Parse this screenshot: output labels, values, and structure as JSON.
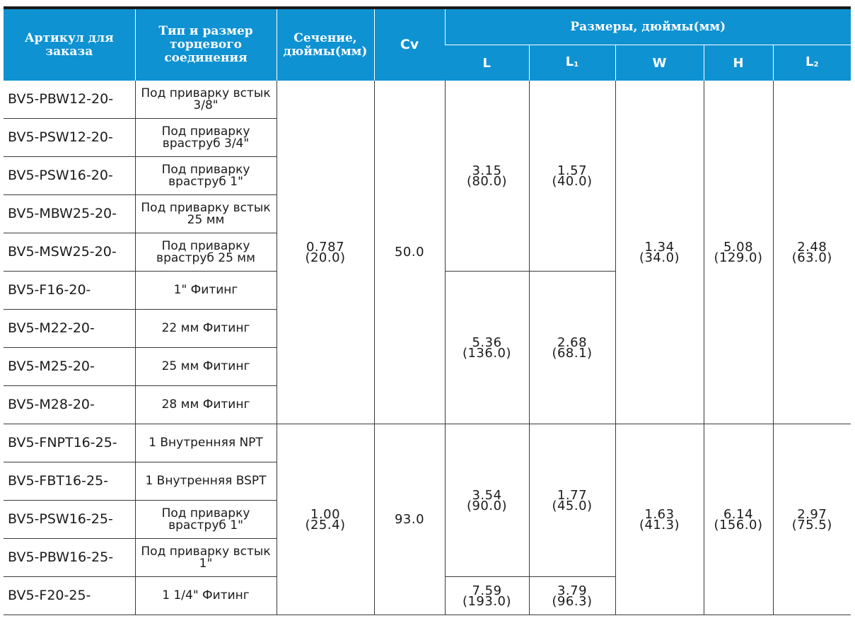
{
  "header": {
    "article": "Артикул для заказа",
    "end_type": "Тип и размер торцевого соединения",
    "section": "Сечение, дюймы(мм)",
    "cv": "Cv",
    "dimensions": "Размеры, дюймы(мм)",
    "dim_cols": {
      "L": "L",
      "L1_base": "L",
      "L1_sub": "1",
      "W": "W",
      "H": "H",
      "L2_base": "L",
      "L2_sub": "2"
    }
  },
  "rows": [
    {
      "article": "BV5-PBW12-20-",
      "type": "Под приварку встык 3/8\""
    },
    {
      "article": "BV5-PSW12-20-",
      "type": "Под приварку враструб 3/4\""
    },
    {
      "article": "BV5-PSW16-20-",
      "type": "Под приварку враструб 1\""
    },
    {
      "article": "BV5-MBW25-20-",
      "type": "Под приварку встык 25 мм"
    },
    {
      "article": "BV5-MSW25-20-",
      "type": "Под приварку враструб 25 мм"
    },
    {
      "article": "BV5-F16-20-",
      "type": "1\" Фитинг"
    },
    {
      "article": "BV5-M22-20-",
      "type": "22 мм Фитинг"
    },
    {
      "article": "BV5-M25-20-",
      "type": "25 мм Фитинг"
    },
    {
      "article": "BV5-M28-20-",
      "type": "28 мм Фитинг"
    },
    {
      "article": "BV5-FNPT16-25-",
      "type": "1 Внутренняя NPT"
    },
    {
      "article": "BV5-FBT16-25-",
      "type": "1 Внутренняя BSPT"
    },
    {
      "article": "BV5-PSW16-25-",
      "type": "Под приварку враструб 1\""
    },
    {
      "article": "BV5-PBW16-25-",
      "type": "Под приварку встык 1\""
    },
    {
      "article": "BV5-F20-25-",
      "type": "1 1/4\"  Фитинг"
    }
  ],
  "group1": {
    "section_in": "0.787",
    "section_mm": "(20.0)",
    "cv": "50.0",
    "L_a_in": "3.15",
    "L_a_mm": "(80.0)",
    "L1_a_in": "1.57",
    "L1_a_mm": "(40.0)",
    "L_b_in": "5.36",
    "L_b_mm": "(136.0)",
    "L1_b_in": "2.68",
    "L1_b_mm": "(68.1)",
    "W_in": "1.34",
    "W_mm": "(34.0)",
    "H_in": "5.08",
    "H_mm": "(129.0)",
    "L2_in": "2.48",
    "L2_mm": "(63.0)"
  },
  "group2": {
    "section_in": "1.00",
    "section_mm": "(25.4)",
    "cv": "93.0",
    "L_a_in": "3.54",
    "L_a_mm": "(90.0)",
    "L1_a_in": "1.77",
    "L1_a_mm": "(45.0)",
    "L_b_in": "7.59",
    "L_b_mm": "(193.0)",
    "L1_b_in": "3.79",
    "L1_b_mm": "(96.3)",
    "W_in": "1.63",
    "W_mm": "(41.3)",
    "H_in": "6.14",
    "H_mm": "(156.0)",
    "L2_in": "2.97",
    "L2_mm": "(75.5)"
  },
  "colors": {
    "header_bg": "#0e92d2",
    "header_text": "#ffffff",
    "body_text": "#1a1a1a"
  }
}
